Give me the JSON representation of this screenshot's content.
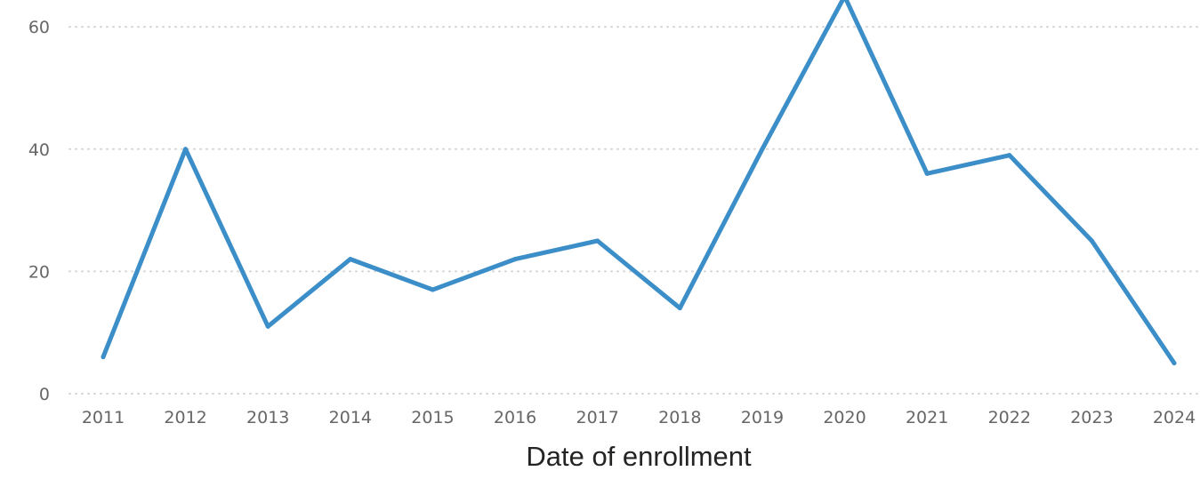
{
  "chart_data": {
    "type": "line",
    "title": "",
    "xlabel": "Date of enrollment",
    "ylabel": "",
    "categories": [
      "2011",
      "2012",
      "2013",
      "2014",
      "2015",
      "2016",
      "2017",
      "2018",
      "2019",
      "2020",
      "2021",
      "2022",
      "2023",
      "2024"
    ],
    "series": [
      {
        "values": [
          6,
          40,
          11,
          22,
          17,
          22,
          25,
          14,
          40,
          65,
          36,
          39,
          25,
          5
        ],
        "color": "#3c8ec8"
      }
    ],
    "yticks": [
      0,
      20,
      40,
      60
    ],
    "ylim": [
      0,
      65
    ],
    "grid": true,
    "grid_style": "dotted horizontal",
    "legend": "none"
  }
}
